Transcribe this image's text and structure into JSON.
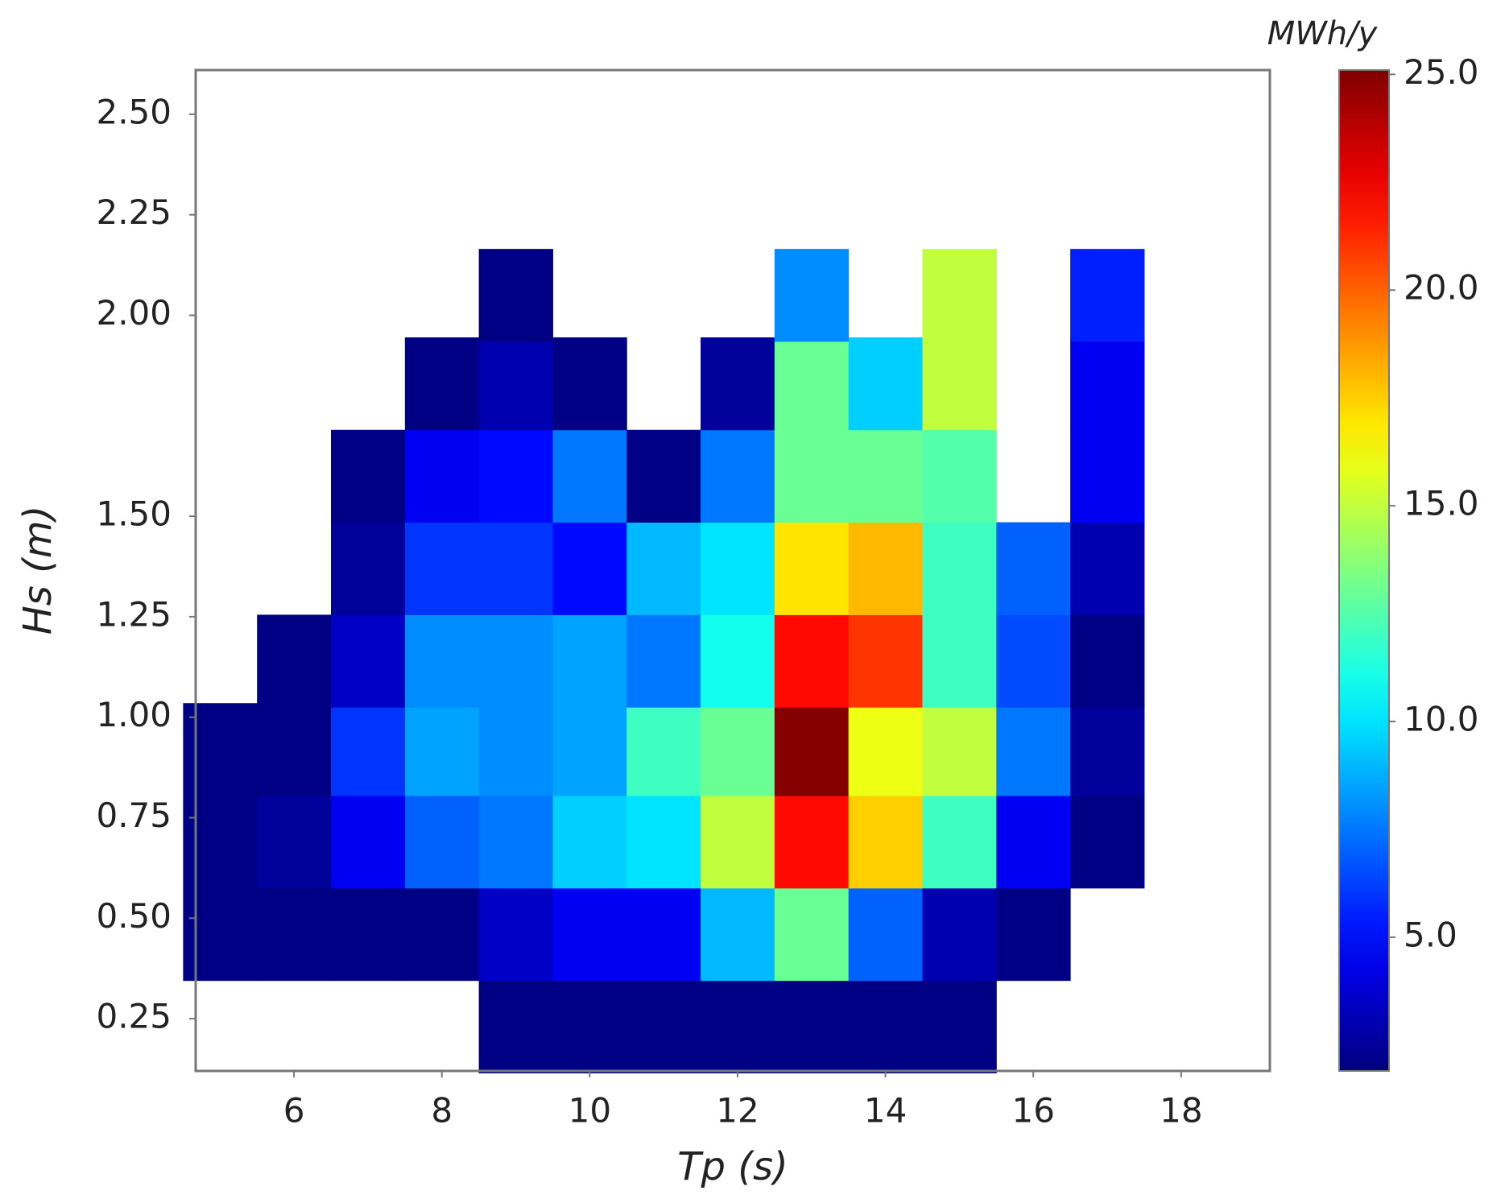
{
  "chart_data": {
    "type": "heatmap",
    "xlabel": "Tp (s)",
    "ylabel": "Hs (m)",
    "colorbar_label": "MWh/y",
    "x": [
      5,
      6,
      7,
      8,
      9,
      10,
      11,
      12,
      13,
      14,
      15,
      16,
      17
    ],
    "y": [
      0.23,
      0.46,
      0.69,
      0.92,
      1.14,
      1.37,
      1.6,
      1.83,
      2.05
    ],
    "z": [
      [
        null,
        null,
        null,
        null,
        2,
        2,
        2,
        2,
        2,
        2,
        2,
        null,
        null
      ],
      [
        2,
        2,
        2,
        2,
        3.5,
        4.5,
        4.5,
        9,
        13,
        7,
        3,
        2,
        null
      ],
      [
        2,
        2.5,
        4.5,
        7,
        7.5,
        9.5,
        10,
        15,
        22,
        17.5,
        12,
        4.5,
        2
      ],
      [
        2,
        2,
        6,
        8.5,
        8,
        8.5,
        12,
        13,
        25,
        16,
        15,
        7.5,
        2.5
      ],
      [
        null,
        2,
        3.5,
        8,
        8,
        8.5,
        7.5,
        11,
        22,
        21,
        12,
        6.5,
        2
      ],
      [
        null,
        null,
        2.5,
        6,
        6,
        5,
        9,
        10,
        17,
        18,
        12,
        7,
        3
      ],
      [
        null,
        null,
        2,
        4.5,
        5,
        7.5,
        2,
        7.5,
        13,
        13,
        12.5,
        null,
        4.5
      ],
      [
        null,
        null,
        null,
        2,
        3,
        2,
        null,
        2.5,
        13,
        9.5,
        15,
        null,
        4.5
      ],
      [
        null,
        null,
        null,
        null,
        2,
        null,
        null,
        null,
        8,
        null,
        15,
        null,
        5.5
      ]
    ],
    "colormap": "jet",
    "xlim": [
      4.67,
      19.2
    ],
    "xticks": [
      6,
      8,
      10,
      12,
      14,
      16,
      18
    ],
    "ylim": [
      0.12,
      2.61
    ],
    "yticks": [
      {
        "value": 0.25,
        "label": "0.25"
      },
      {
        "value": 0.5,
        "label": "0.50"
      },
      {
        "value": 0.75,
        "label": "0.75"
      },
      {
        "value": 1,
        "label": "1.00"
      },
      {
        "value": 1.25,
        "label": "1.25"
      },
      {
        "value": 1.5,
        "label": "1.50"
      },
      {
        "value": 2,
        "label": "2.00"
      },
      {
        "value": 2.25,
        "label": "2.25"
      },
      {
        "value": 2.5,
        "label": "2.50"
      }
    ],
    "zlim": [
      1.9,
      25.1
    ],
    "zticks": [
      {
        "value": 5,
        "label": "5.0"
      },
      {
        "value": 10,
        "label": "10.0"
      },
      {
        "value": 15,
        "label": "15.0"
      },
      {
        "value": 20,
        "label": "20.0"
      },
      {
        "value": 25,
        "label": "25.0"
      }
    ]
  }
}
